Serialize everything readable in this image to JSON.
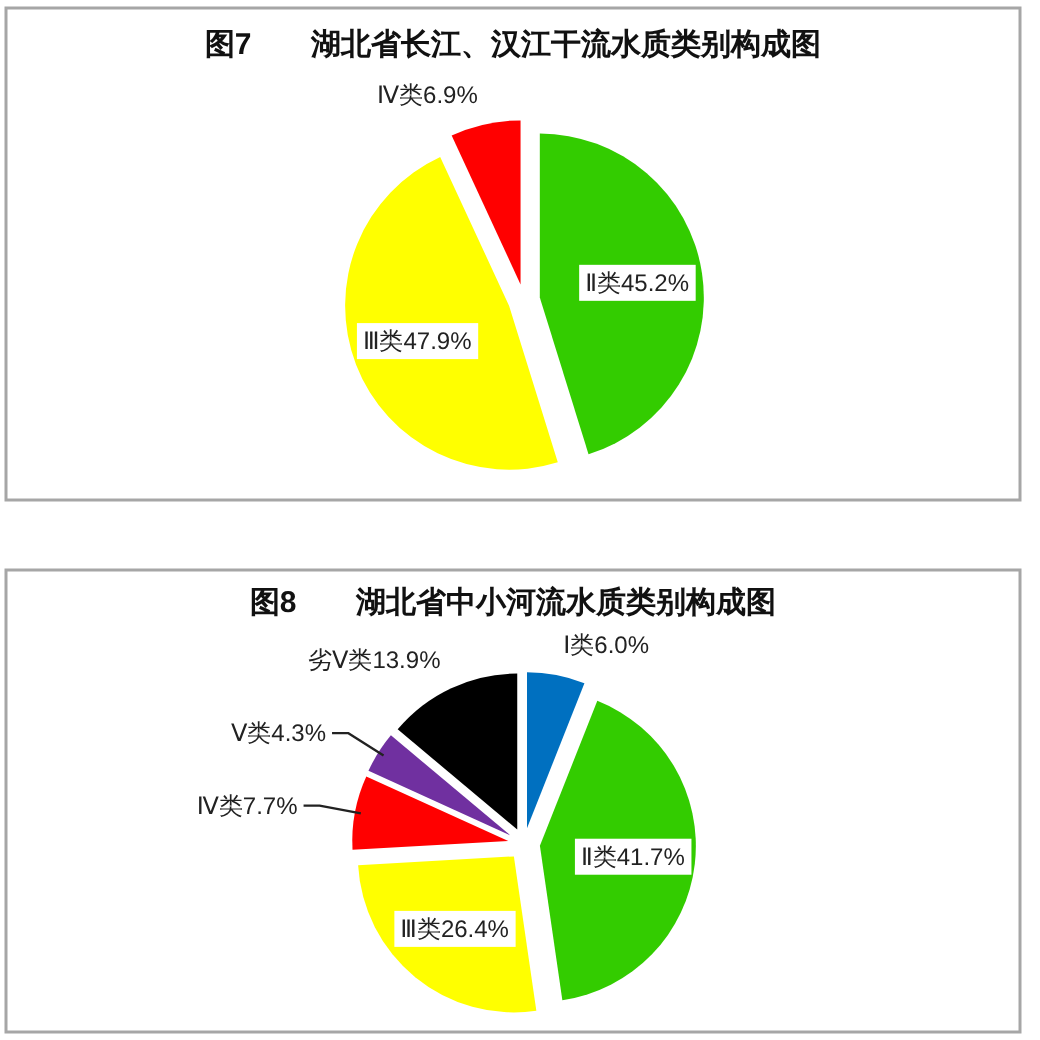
{
  "chart_data": [
    {
      "type": "pie",
      "title": "图7　　湖北省长江、汉江干流水质类别构成图",
      "categories": [
        "Ⅱ类",
        "Ⅲ类",
        "Ⅳ类"
      ],
      "values": [
        45.2,
        47.9,
        6.9
      ],
      "colors": [
        "#33cc00",
        "#ffff00",
        "#ff0000"
      ],
      "value_labels": [
        "45.2%",
        "47.9%",
        "6.9%"
      ]
    },
    {
      "type": "pie",
      "title": "图8　　湖北省中小河流水质类别构成图",
      "categories": [
        "Ⅰ类",
        "Ⅱ类",
        "Ⅲ类",
        "Ⅳ类",
        "Ⅴ类",
        "劣Ⅴ类"
      ],
      "values": [
        6.0,
        41.7,
        26.4,
        7.7,
        4.3,
        13.9
      ],
      "colors": [
        "#0070c0",
        "#33cc00",
        "#ffff00",
        "#ff0000",
        "#7030a0",
        "#000000"
      ],
      "value_labels": [
        "6.0%",
        "41.7%",
        "26.4%",
        "7.7%",
        "4.3%",
        "13.9%"
      ]
    }
  ]
}
